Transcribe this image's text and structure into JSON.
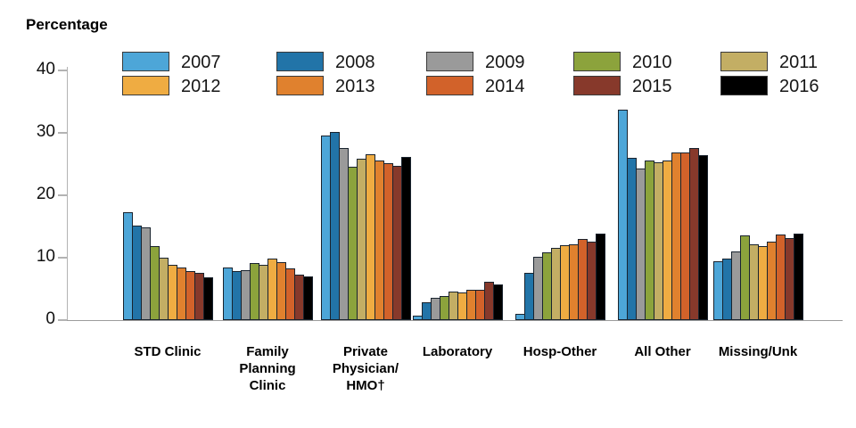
{
  "chart_data": {
    "type": "bar",
    "title": "Percentage",
    "xlabel": "",
    "ylabel": "Percentage",
    "ylim": [
      0,
      40
    ],
    "yticks": [
      0,
      10,
      20,
      30,
      40
    ],
    "grid": false,
    "legend_position": "top",
    "categories": [
      "STD Clinic",
      "Family Planning Clinic",
      "Private Physician/HMO†",
      "Laboratory",
      "Hosp-Other",
      "All Other",
      "Missing/Unk"
    ],
    "category_label_lines": [
      [
        "STD Clinic"
      ],
      [
        "Family",
        "Planning",
        "Clinic"
      ],
      [
        "Private",
        "Physician/",
        "HMO†"
      ],
      [
        "Laboratory"
      ],
      [
        "Hosp-Other"
      ],
      [
        "All Other"
      ],
      [
        "Missing/Unk"
      ]
    ],
    "series": [
      {
        "name": "2007",
        "color": "#4DA6D8",
        "values": [
          17.3,
          8.4,
          29.5,
          0.7,
          1.0,
          33.7,
          9.4
        ]
      },
      {
        "name": "2008",
        "color": "#2274A8",
        "values": [
          15.2,
          7.9,
          30.1,
          2.8,
          7.5,
          26.0,
          9.8
        ]
      },
      {
        "name": "2009",
        "color": "#9A9A9A",
        "values": [
          14.9,
          8.0,
          27.5,
          3.5,
          10.2,
          24.3,
          11.0
        ]
      },
      {
        "name": "2010",
        "color": "#8CA33C",
        "values": [
          11.8,
          9.1,
          24.6,
          3.8,
          10.8,
          25.5,
          13.6
        ]
      },
      {
        "name": "2011",
        "color": "#C3AE64",
        "values": [
          10.0,
          8.8,
          25.8,
          4.6,
          11.6,
          25.3,
          12.2
        ]
      },
      {
        "name": "2012",
        "color": "#EFAC42",
        "values": [
          8.9,
          9.9,
          26.6,
          4.4,
          12.0,
          25.5,
          11.9
        ]
      },
      {
        "name": "2013",
        "color": "#E0812E",
        "values": [
          8.4,
          9.3,
          25.5,
          4.8,
          12.2,
          26.9,
          12.6
        ]
      },
      {
        "name": "2014",
        "color": "#D2622A",
        "values": [
          7.9,
          8.3,
          25.2,
          4.8,
          13.0,
          26.9,
          13.7
        ]
      },
      {
        "name": "2015",
        "color": "#87392B",
        "values": [
          7.6,
          7.3,
          24.7,
          6.1,
          12.6,
          27.6,
          13.2
        ]
      },
      {
        "name": "2016",
        "color": "#000000",
        "values": [
          6.9,
          7.0,
          26.1,
          5.7,
          13.8,
          26.4,
          13.8
        ]
      }
    ]
  },
  "legend": {
    "rows": [
      [
        "2007",
        "2008",
        "2009",
        "2010",
        "2011"
      ],
      [
        "2012",
        "2013",
        "2014",
        "2015",
        "2016"
      ]
    ]
  }
}
